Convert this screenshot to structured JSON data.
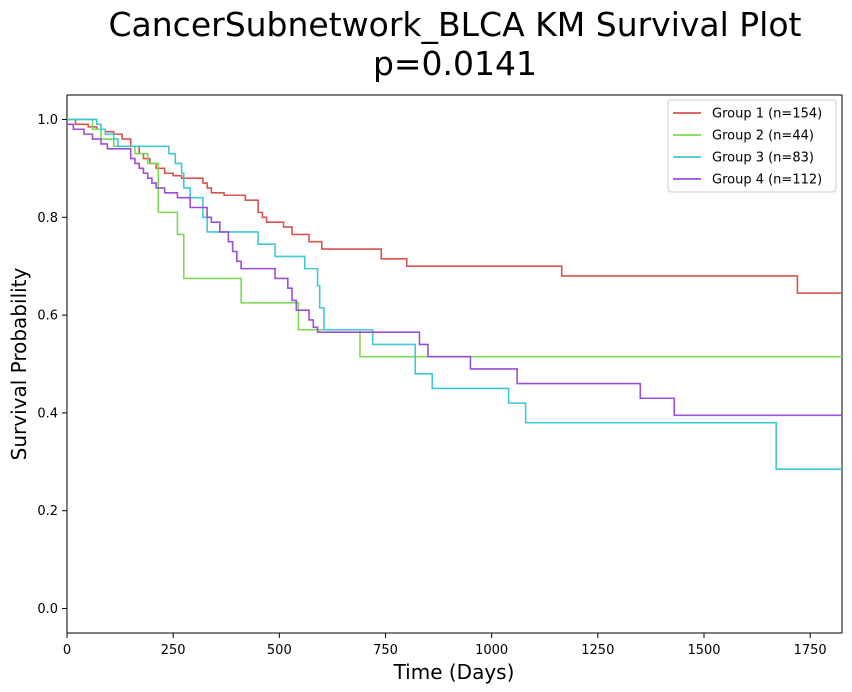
{
  "chart_data": {
    "type": "line",
    "title": "CancerSubnetwork_BLCA KM Survival Plot",
    "subtitle": "p=0.0141",
    "xlabel": "Time (Days)",
    "ylabel": "Survival Probability",
    "xlim": [
      0,
      1825
    ],
    "ylim": [
      -0.05,
      1.05
    ],
    "xticks": [
      0,
      250,
      500,
      750,
      1000,
      1250,
      1500,
      1750
    ],
    "xtick_labels": [
      "0",
      "250",
      "500",
      "750",
      "1000",
      "1250",
      "1500",
      "1750"
    ],
    "yticks": [
      0.0,
      0.2,
      0.4,
      0.6,
      0.8,
      1.0
    ],
    "ytick_labels": [
      "0.0",
      "0.2",
      "0.4",
      "0.6",
      "0.8",
      "1.0"
    ],
    "grid": false,
    "step": "post",
    "legend_position": "top-right",
    "series": [
      {
        "name": "Group 1 (n=154)",
        "color": "#d9534f",
        "x": [
          0,
          20,
          50,
          70,
          90,
          110,
          130,
          150,
          170,
          180,
          195,
          210,
          230,
          250,
          270,
          320,
          330,
          340,
          370,
          420,
          450,
          460,
          470,
          510,
          530,
          570,
          600,
          740,
          800,
          1165,
          1720,
          1825
        ],
        "y": [
          1.0,
          0.99,
          0.985,
          0.98,
          0.975,
          0.97,
          0.96,
          0.945,
          0.93,
          0.92,
          0.91,
          0.9,
          0.89,
          0.885,
          0.88,
          0.87,
          0.86,
          0.85,
          0.845,
          0.835,
          0.81,
          0.8,
          0.79,
          0.78,
          0.765,
          0.75,
          0.735,
          0.715,
          0.7,
          0.68,
          0.645,
          0.645
        ]
      },
      {
        "name": "Group 2 (n=44)",
        "color": "#7ed957",
        "x": [
          0,
          60,
          80,
          110,
          160,
          190,
          215,
          260,
          275,
          410,
          545,
          690,
          1825
        ],
        "y": [
          1.0,
          0.98,
          0.96,
          0.945,
          0.93,
          0.91,
          0.81,
          0.765,
          0.675,
          0.625,
          0.57,
          0.515,
          0.515
        ]
      },
      {
        "name": "Group 3 (n=83)",
        "color": "#3fc8d6",
        "x": [
          0,
          70,
          80,
          90,
          110,
          120,
          240,
          255,
          270,
          275,
          290,
          320,
          330,
          370,
          450,
          490,
          560,
          590,
          595,
          605,
          720,
          820,
          860,
          1040,
          1080,
          1670,
          1825
        ],
        "y": [
          1.0,
          0.99,
          0.98,
          0.97,
          0.96,
          0.945,
          0.93,
          0.91,
          0.89,
          0.86,
          0.84,
          0.8,
          0.77,
          0.77,
          0.745,
          0.72,
          0.695,
          0.66,
          0.615,
          0.57,
          0.54,
          0.48,
          0.45,
          0.42,
          0.38,
          0.285,
          0.285
        ]
      },
      {
        "name": "Group 4 (n=112)",
        "color": "#9b4fd6",
        "x": [
          0,
          15,
          40,
          60,
          80,
          95,
          150,
          160,
          170,
          180,
          190,
          200,
          210,
          230,
          260,
          290,
          330,
          340,
          360,
          380,
          390,
          400,
          410,
          490,
          520,
          530,
          540,
          570,
          580,
          590,
          600,
          830,
          850,
          870,
          950,
          1060,
          1350,
          1430,
          1825
        ],
        "y": [
          0.99,
          0.98,
          0.97,
          0.96,
          0.95,
          0.94,
          0.92,
          0.91,
          0.9,
          0.89,
          0.88,
          0.87,
          0.86,
          0.85,
          0.84,
          0.82,
          0.8,
          0.79,
          0.77,
          0.75,
          0.73,
          0.71,
          0.695,
          0.675,
          0.655,
          0.63,
          0.61,
          0.59,
          0.575,
          0.565,
          0.565,
          0.54,
          0.515,
          0.515,
          0.49,
          0.46,
          0.43,
          0.395,
          0.395
        ]
      }
    ]
  }
}
